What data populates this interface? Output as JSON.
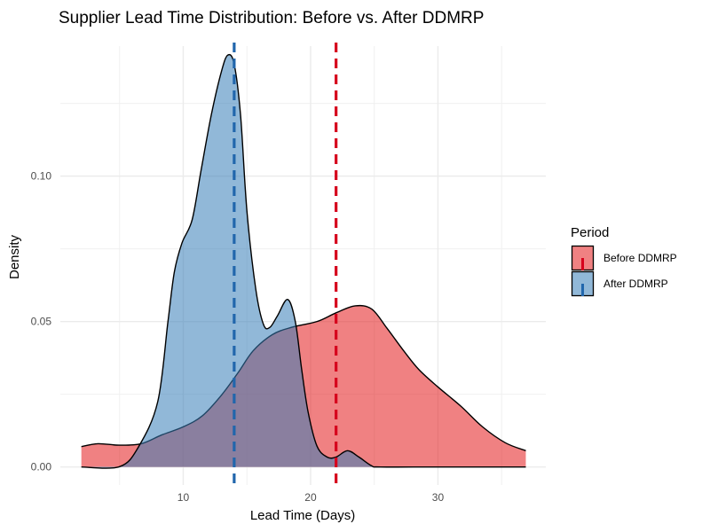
{
  "chart_data": {
    "type": "area",
    "subtype": "density",
    "title": "Supplier Lead Time Distribution: Before vs. After DDMRP",
    "xlabel": "Lead Time (Days)",
    "ylabel": "Density",
    "xlim": [
      0.35,
      38.47
    ],
    "ylim": [
      -0.0062,
      0.1447
    ],
    "xticks": [
      10,
      20,
      30
    ],
    "xtick_labels": [
      "10",
      "20",
      "30"
    ],
    "yticks": [
      0,
      0.05,
      0.1
    ],
    "ytick_labels": [
      "0.00",
      "0.05",
      "0.10"
    ],
    "grid": true,
    "legend": {
      "title": "Period",
      "placement": "right"
    },
    "series": [
      {
        "name": "Before DDMRP",
        "fill": "#E41A1C",
        "mean_line_color": "#D6001C",
        "mean": 22.0,
        "x": [
          2.0,
          3.3,
          5.0,
          6.7,
          8.3,
          10.0,
          11.5,
          13.0,
          14.3,
          15.5,
          17.0,
          18.5,
          20.5,
          22.0,
          23.5,
          24.8,
          26.0,
          27.3,
          28.5,
          30.0,
          31.8,
          33.5,
          35.3,
          36.9
        ],
        "y": [
          0.007,
          0.008,
          0.0075,
          0.008,
          0.011,
          0.0138,
          0.0176,
          0.0247,
          0.0324,
          0.04,
          0.0455,
          0.048,
          0.05,
          0.053,
          0.0554,
          0.0543,
          0.0477,
          0.04,
          0.0335,
          0.0275,
          0.0209,
          0.0138,
          0.0083,
          0.0056
        ]
      },
      {
        "name": "After DDMRP",
        "fill": "#377EB8",
        "mean_line_color": "#2166AC",
        "mean": 14.0,
        "x": [
          2.0,
          5.0,
          6.5,
          8.0,
          8.8,
          9.3,
          9.9,
          10.7,
          11.4,
          12.2,
          13.0,
          13.5,
          14.0,
          14.5,
          15.0,
          15.7,
          16.3,
          16.8,
          17.4,
          18.2,
          18.8,
          19.3,
          19.8,
          20.5,
          21.3,
          22.0,
          22.9,
          23.8,
          24.8,
          25.5,
          30.0,
          36.9
        ],
        "y": [
          0,
          0.0001,
          0.007,
          0.0225,
          0.05,
          0.067,
          0.077,
          0.085,
          0.102,
          0.121,
          0.136,
          0.1416,
          0.1385,
          0.121,
          0.088,
          0.061,
          0.049,
          0.048,
          0.052,
          0.0576,
          0.05,
          0.0335,
          0.019,
          0.0072,
          0.0034,
          0.0034,
          0.0056,
          0.0034,
          0.0004,
          0,
          0,
          0
        ]
      }
    ]
  }
}
